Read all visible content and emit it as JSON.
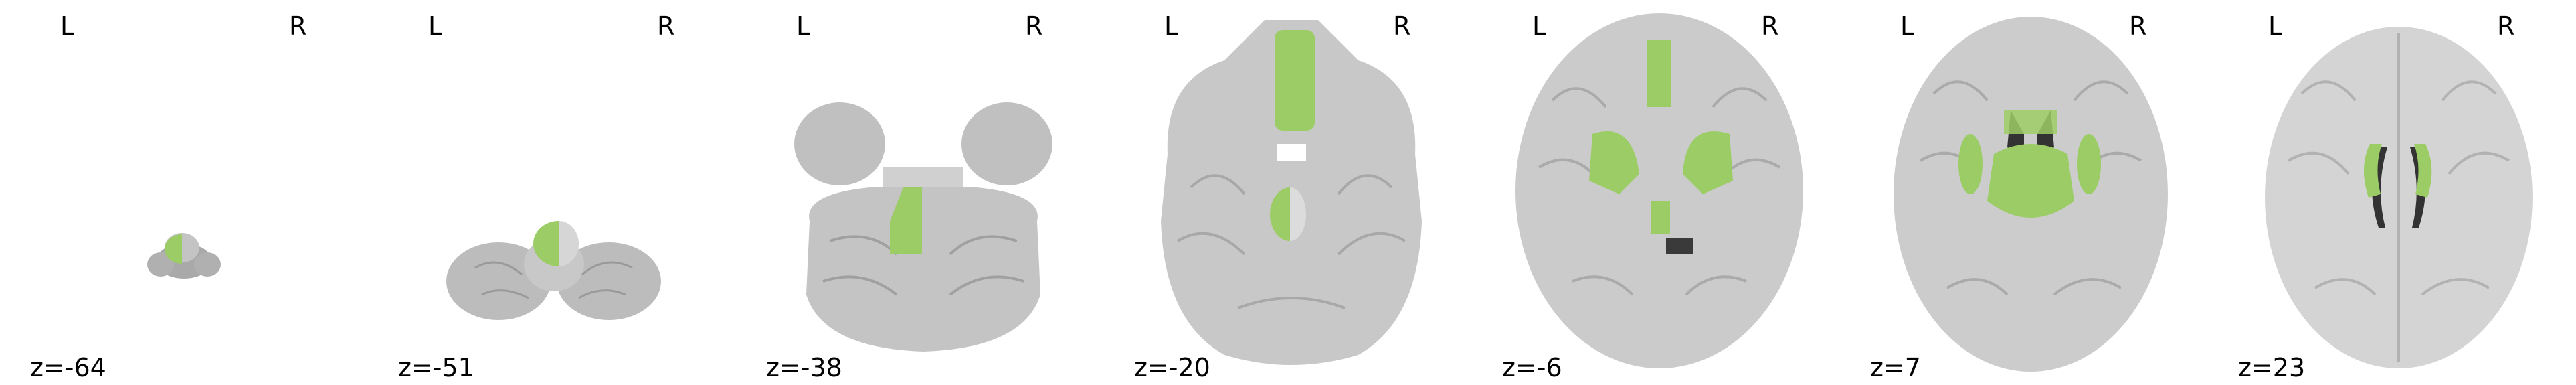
{
  "figure": {
    "orientation_left": "L",
    "orientation_right": "R",
    "overlay_color": "#9ccc65",
    "slices": [
      {
        "z_label": "z=-64"
      },
      {
        "z_label": "z=-51"
      },
      {
        "z_label": "z=-38"
      },
      {
        "z_label": "z=-20"
      },
      {
        "z_label": "z=-6"
      },
      {
        "z_label": "z=7"
      },
      {
        "z_label": "z=23"
      }
    ]
  }
}
